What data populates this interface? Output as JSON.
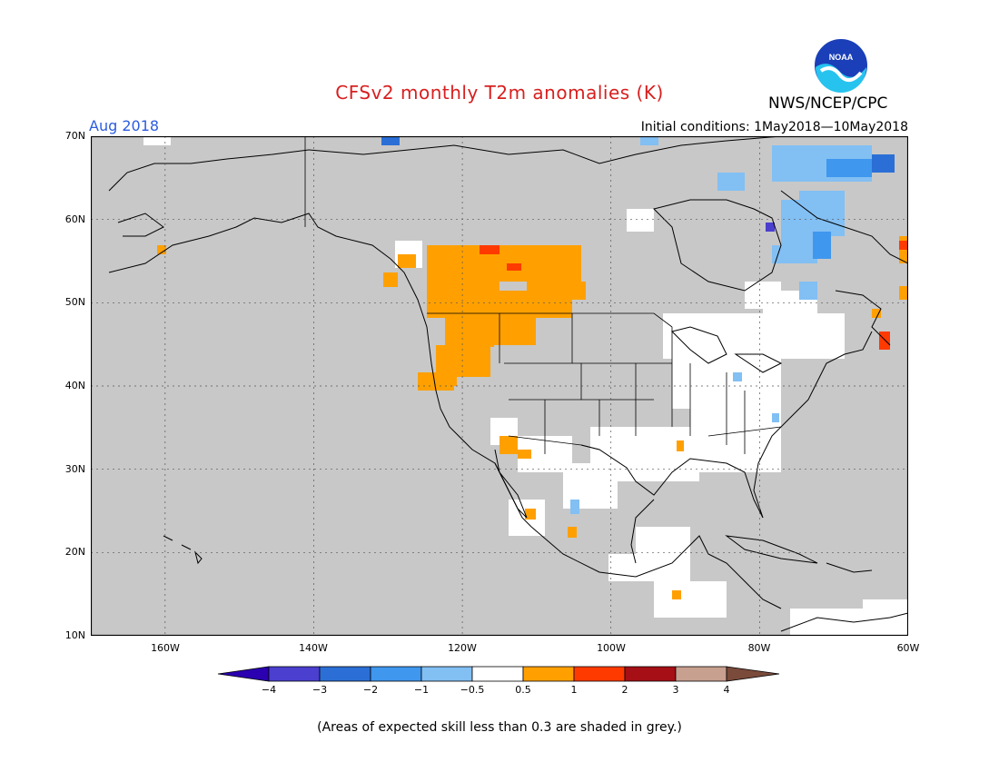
{
  "header": {
    "title": "CFSv2 monthly T2m anomalies (K)",
    "agency": "NWS/NCEP/CPC",
    "month": "Aug 2018",
    "initial_conditions": "Initial conditions: 1May2018—10May2018"
  },
  "logo": {
    "text": "NOAA",
    "icon": "noaa-logo-icon"
  },
  "map": {
    "lat_labels": [
      "70N",
      "60N",
      "50N",
      "40N",
      "30N",
      "20N",
      "10N"
    ],
    "lon_labels": [
      "160W",
      "140W",
      "120W",
      "100W",
      "80W",
      "60W"
    ],
    "lat_range": [
      10,
      70
    ],
    "lon_range": [
      -170,
      -60
    ],
    "gridlines": true
  },
  "colorbar": {
    "labels": [
      "−4",
      "−3",
      "−2",
      "−1",
      "−0.5",
      "0.5",
      "1",
      "2",
      "3",
      "4"
    ],
    "colors": [
      "#2a00b0",
      "#4a3fcf",
      "#2b6fd6",
      "#3f97ee",
      "#82bff3",
      "#ffffff",
      "#ffa000",
      "#ff3a00",
      "#a50f15",
      "#c8a090",
      "#7a4a3a"
    ]
  },
  "footnote": "(Areas of expected skill less than 0.3 are shaded in grey.)",
  "colors": {
    "grey": "#c8c8c8",
    "title": "#d81f1f",
    "month": "#2c5ce0"
  }
}
